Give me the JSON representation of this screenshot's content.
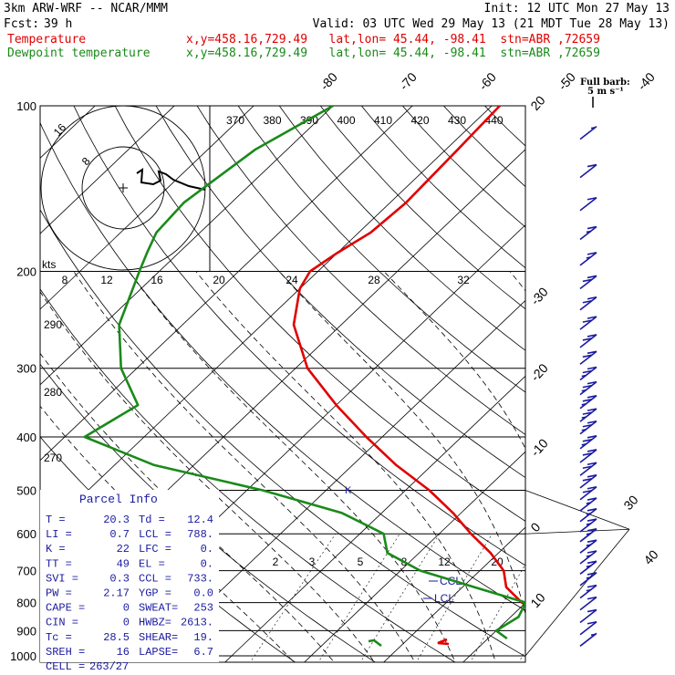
{
  "header": {
    "model": "3km ARW-WRF -- NCAR/MMM",
    "init": "Init: 12 UTC Mon 27 May 13",
    "fcst_label": "Fcst:",
    "fcst_value": "39 h",
    "valid": "Valid: 03 UTC Wed 29 May 13 (21 MDT Tue 28 May 13)",
    "temp_label": "Temperature",
    "temp_loc": "x,y=458.16,729.49   lat,lon= 45.44, -98.41  stn=ABR ,72659",
    "dew_label": "Dewpoint temperature",
    "dew_loc": "x,y=458.16,729.49   lat,lon= 45.44, -98.41  stn=ABR ,72659"
  },
  "colors": {
    "temperature": "#e00000",
    "dewpoint": "#1a8a1a",
    "text_blue": "#1a1aa0",
    "barb": "#1a1aa0",
    "hodograph": "#000000"
  },
  "parcel_info": {
    "title": "Parcel Info",
    "rows": [
      [
        "T    =",
        "20.3",
        "Td  =",
        "12.4"
      ],
      [
        "LI   =",
        "0.7",
        "LCL =",
        "788."
      ],
      [
        "K    =",
        "22",
        "LFC =",
        "0."
      ],
      [
        "TT   =",
        "49",
        "EL  =",
        "0."
      ],
      [
        "SVI  =",
        "0.3",
        "CCL =",
        "733."
      ],
      [
        "PW   =",
        "2.17",
        "YGP =",
        "0.0"
      ],
      [
        "CAPE =",
        "0",
        "SWEAT=",
        "253"
      ],
      [
        "CIN  =",
        "0",
        "HWBZ=",
        "2613."
      ],
      [
        "Tc   =",
        "28.5",
        "SHEAR=",
        "19."
      ],
      [
        "SREH =",
        "16",
        "LAPSE=",
        "6.7"
      ],
      [
        "CELL =",
        "263/27",
        "",
        ""
      ]
    ]
  },
  "barb_legend": {
    "title": "Full barb:",
    "unit": "5 m s⁻¹"
  },
  "annotations": {
    "ccl": "CCL",
    "lcl": "LCL",
    "hodo_units": "kts"
  },
  "chart_data": {
    "type": "line",
    "title": "",
    "pressure_levels_hpa": [
      100,
      200,
      300,
      400,
      500,
      600,
      700,
      800,
      900,
      1000
    ],
    "pressure_labels": [
      "100",
      "200",
      "300",
      "400",
      "500",
      "600",
      "700",
      "800",
      "900",
      "1000"
    ],
    "isotherm_labels_top": [
      "-80",
      "-70",
      "-60",
      "-50",
      "-40"
    ],
    "isotherm_labels_right": [
      "-30",
      "-20",
      "-10",
      "0",
      "10",
      "20",
      "30",
      "40"
    ],
    "isotherm_values_top": [
      -80,
      -70,
      -60,
      -50,
      -40
    ],
    "isotherm_values_right": [
      -30,
      -20,
      -10,
      0,
      10,
      20,
      30,
      40
    ],
    "theta_labels_top": [
      "370",
      "380",
      "390",
      "400",
      "410",
      "420",
      "430",
      "440"
    ],
    "theta_labels_left": [
      "290",
      "280",
      "270"
    ],
    "mixing_ratio_labels": [
      "2",
      "3",
      "5",
      "8",
      "12",
      "20"
    ],
    "hodograph_speed_labels": [
      "8",
      "12",
      "16",
      "20",
      "24",
      "28",
      "32"
    ],
    "hodograph_ring_labels": [
      "8",
      "16"
    ],
    "series": [
      {
        "name": "Temperature",
        "color": "#e00000",
        "points": [
          [
            100,
            -59
          ],
          [
            120,
            -58.5
          ],
          [
            150,
            -58
          ],
          [
            170,
            -58.5
          ],
          [
            185,
            -60
          ],
          [
            200,
            -61
          ],
          [
            215,
            -60
          ],
          [
            250,
            -56
          ],
          [
            300,
            -48.5
          ],
          [
            350,
            -40
          ],
          [
            400,
            -32
          ],
          [
            450,
            -24.5
          ],
          [
            500,
            -17
          ],
          [
            550,
            -11
          ],
          [
            600,
            -6
          ],
          [
            650,
            -1
          ],
          [
            700,
            3
          ],
          [
            750,
            5.5
          ],
          [
            800,
            9.5
          ],
          [
            850,
            15.5
          ],
          [
            900,
            19
          ],
          [
            920,
            20
          ],
          [
            930,
            20.3
          ]
        ]
      },
      {
        "name": "Dewpoint temperature",
        "color": "#1a8a1a",
        "points": [
          [
            100,
            -80
          ],
          [
            120,
            -84
          ],
          [
            150,
            -86
          ],
          [
            170,
            -85.5
          ],
          [
            185,
            -84
          ],
          [
            200,
            -82.5
          ],
          [
            250,
            -78
          ],
          [
            300,
            -72
          ],
          [
            350,
            -65
          ],
          [
            400,
            -67.5
          ],
          [
            450,
            -55
          ],
          [
            500,
            -38
          ],
          [
            550,
            -25
          ],
          [
            600,
            -17
          ],
          [
            650,
            -14
          ],
          [
            700,
            -7.5
          ],
          [
            750,
            1.5
          ],
          [
            800,
            10
          ],
          [
            850,
            11
          ],
          [
            900,
            10
          ],
          [
            930,
            12.4
          ]
        ]
      }
    ],
    "wind_barbs_kt": [
      {
        "p": 115,
        "spd": 5
      },
      {
        "p": 135,
        "spd": 10
      },
      {
        "p": 155,
        "spd": 10
      },
      {
        "p": 175,
        "spd": 15
      },
      {
        "p": 195,
        "spd": 15
      },
      {
        "p": 215,
        "spd": 20
      },
      {
        "p": 235,
        "spd": 20
      },
      {
        "p": 255,
        "spd": 20
      },
      {
        "p": 275,
        "spd": 20
      },
      {
        "p": 295,
        "spd": 20
      },
      {
        "p": 315,
        "spd": 25
      },
      {
        "p": 335,
        "spd": 25
      },
      {
        "p": 355,
        "spd": 25
      },
      {
        "p": 375,
        "spd": 25
      },
      {
        "p": 395,
        "spd": 25
      },
      {
        "p": 420,
        "spd": 25
      },
      {
        "p": 445,
        "spd": 20
      },
      {
        "p": 470,
        "spd": 20
      },
      {
        "p": 495,
        "spd": 20
      },
      {
        "p": 520,
        "spd": 20
      },
      {
        "p": 545,
        "spd": 15
      },
      {
        "p": 570,
        "spd": 15
      },
      {
        "p": 595,
        "spd": 15
      },
      {
        "p": 620,
        "spd": 15
      },
      {
        "p": 650,
        "spd": 15
      },
      {
        "p": 680,
        "spd": 15
      },
      {
        "p": 710,
        "spd": 15
      },
      {
        "p": 745,
        "spd": 15
      },
      {
        "p": 785,
        "spd": 15
      },
      {
        "p": 825,
        "spd": 10
      },
      {
        "p": 870,
        "spd": 10
      },
      {
        "p": 915,
        "spd": 10
      },
      {
        "p": 960,
        "spd": 5
      }
    ]
  }
}
